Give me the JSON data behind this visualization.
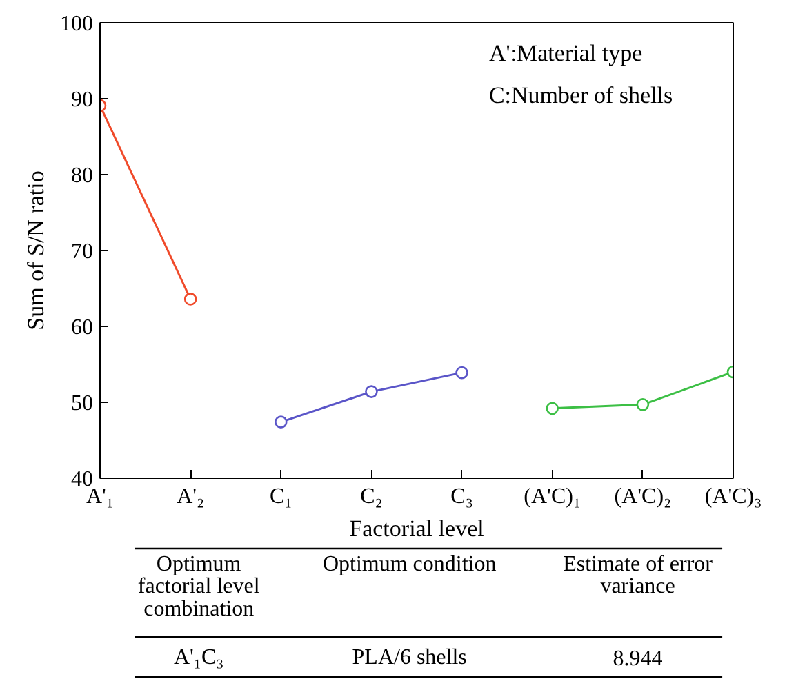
{
  "chart_data": {
    "type": "line",
    "xlabel": "Factorial level",
    "ylabel": "Sum of S/N ratio",
    "categories": [
      "A'₁",
      "A'₂",
      "C₁",
      "C₂",
      "C₃",
      "(A'C)₁",
      "(A'C)₂",
      "(A'C)₃"
    ],
    "series": [
      {
        "color": "#f04a2a",
        "values": [
          89.1,
          63.6,
          null,
          null,
          null,
          null,
          null,
          null
        ]
      },
      {
        "color": "#5a55c8",
        "values": [
          null,
          null,
          47.4,
          51.4,
          53.9,
          null,
          null,
          null
        ]
      },
      {
        "color": "#3cbf45",
        "values": [
          null,
          null,
          null,
          null,
          null,
          49.2,
          49.7,
          54.0
        ]
      }
    ],
    "ylim": [
      40,
      100
    ],
    "yticks": [
      40,
      50,
      60,
      70,
      80,
      90,
      100
    ],
    "grid": false,
    "marker": "circle",
    "line_style": "solid",
    "annotations": [
      "A':Material type",
      "C:Number of shells",
      "Optimum\nfactorial level\ncombination",
      "Optimum condition",
      "Estimate of error\nvariance",
      "A'₁C₃",
      "PLA/6 shells",
      "8.944"
    ]
  }
}
